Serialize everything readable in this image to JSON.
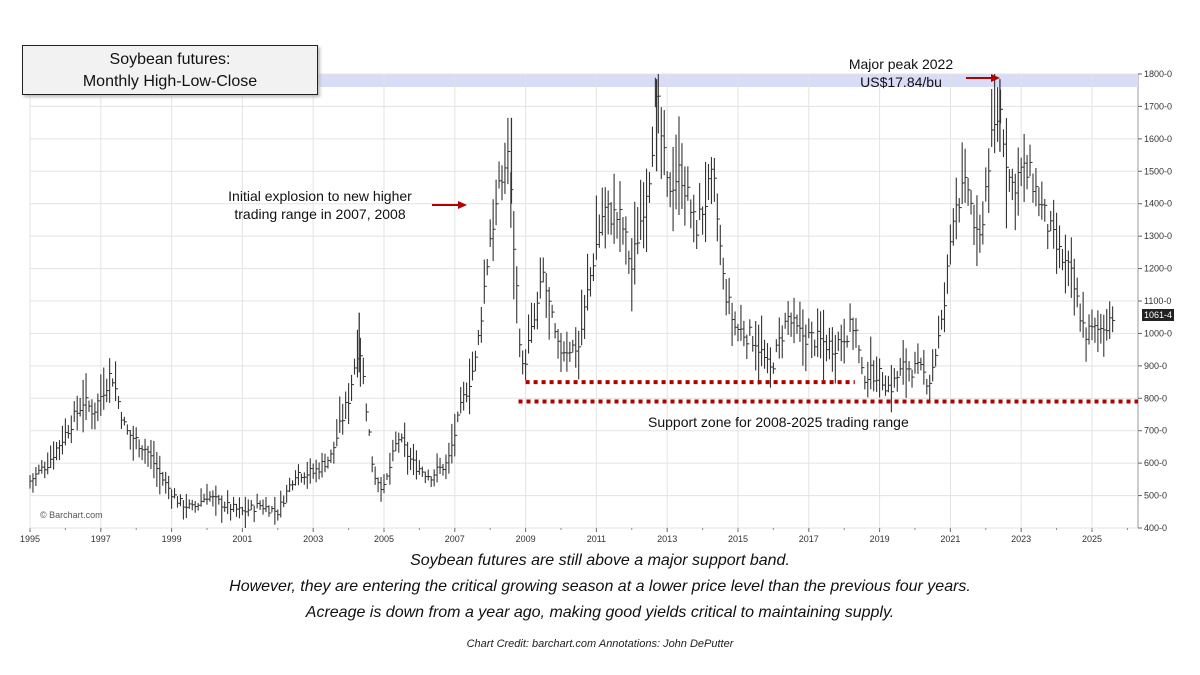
{
  "title": {
    "line1": "Soybean futures:",
    "line2": "Monthly High-Low-Close"
  },
  "annotations": {
    "initial_line1": "Initial explosion to new higher",
    "initial_line2": "trading range in 2007, 2008",
    "peak_line1": "Major peak 2022",
    "peak_line2": "US$17.84/bu",
    "support": "Support zone for 2008-2025 trading range"
  },
  "captions": {
    "line1": "Soybean futures are still above a major support band.",
    "line2": "However, they are entering the critical growing season at a lower price level than the previous four years.",
    "line3": "Acreage is down from a year ago, making good yields critical to maintaining supply."
  },
  "credit": "Chart Credit: barchart.com Annotations: John DePutter",
  "watermark": "© Barchart.com",
  "last_price_label": "1061-4",
  "colors": {
    "bars": "#333333",
    "arrow": "#b00000",
    "support_dots": "#b00000",
    "peak_band": "#d8dcf6",
    "grid": "#e3e3e3"
  },
  "chart_data": {
    "type": "bar",
    "style": "monthly high-low-close",
    "title": "Soybean futures: Monthly High-Low-Close",
    "xlim": [
      1995,
      2026.3
    ],
    "ylim": [
      400,
      1800
    ],
    "x_ticks": [
      1995,
      1997,
      1999,
      2001,
      2003,
      2005,
      2007,
      2009,
      2011,
      2013,
      2015,
      2017,
      2019,
      2021,
      2023,
      2025
    ],
    "y_ticks": [
      400,
      500,
      600,
      700,
      800,
      900,
      1000,
      1100,
      1200,
      1300,
      1400,
      1500,
      1600,
      1700,
      1800
    ],
    "y_tick_labels": [
      "400-0",
      "500-0",
      "600-0",
      "700-0",
      "800-0",
      "900-0",
      "1000-0",
      "1100-0",
      "1200-0",
      "1300-0",
      "1400-0",
      "1500-0",
      "1600-0",
      "1700-0",
      "1800-0"
    ],
    "grid": true,
    "y_axis_position": "right",
    "anchors": [
      [
        1995.0,
        545
      ],
      [
        1995.5,
        600
      ],
      [
        1996.0,
        690
      ],
      [
        1996.5,
        790
      ],
      [
        1996.8,
        760
      ],
      [
        1997.3,
        880
      ],
      [
        1997.7,
        700
      ],
      [
        1998.3,
        640
      ],
      [
        1998.8,
        540
      ],
      [
        1999.2,
        480
      ],
      [
        1999.6,
        460
      ],
      [
        2000.0,
        500
      ],
      [
        2000.5,
        470
      ],
      [
        2001.0,
        450
      ],
      [
        2001.5,
        470
      ],
      [
        2002.0,
        450
      ],
      [
        2002.5,
        570
      ],
      [
        2003.0,
        570
      ],
      [
        2003.5,
        620
      ],
      [
        2004.0,
        800
      ],
      [
        2004.3,
        980
      ],
      [
        2004.7,
        570
      ],
      [
        2005.0,
        520
      ],
      [
        2005.4,
        680
      ],
      [
        2005.8,
        600
      ],
      [
        2006.3,
        560
      ],
      [
        2006.8,
        600
      ],
      [
        2007.2,
        780
      ],
      [
        2007.6,
        920
      ],
      [
        2008.0,
        1300
      ],
      [
        2008.5,
        1560
      ],
      [
        2008.9,
        880
      ],
      [
        2009.3,
        1060
      ],
      [
        2009.5,
        1180
      ],
      [
        2009.9,
        950
      ],
      [
        2010.5,
        960
      ],
      [
        2010.9,
        1220
      ],
      [
        2011.2,
        1380
      ],
      [
        2011.7,
        1350
      ],
      [
        2012.0,
        1200
      ],
      [
        2012.5,
        1500
      ],
      [
        2012.7,
        1730
      ],
      [
        2013.0,
        1450
      ],
      [
        2013.4,
        1500
      ],
      [
        2013.8,
        1320
      ],
      [
        2014.3,
        1480
      ],
      [
        2014.6,
        1150
      ],
      [
        2014.9,
        1020
      ],
      [
        2015.5,
        980
      ],
      [
        2015.9,
        880
      ],
      [
        2016.4,
        1050
      ],
      [
        2016.7,
        1000
      ],
      [
        2017.2,
        980
      ],
      [
        2017.7,
        960
      ],
      [
        2018.3,
        1030
      ],
      [
        2018.5,
        870
      ],
      [
        2018.9,
        880
      ],
      [
        2019.3,
        830
      ],
      [
        2019.7,
        900
      ],
      [
        2020.2,
        880
      ],
      [
        2020.4,
        850
      ],
      [
        2020.8,
        1050
      ],
      [
        2021.1,
        1400
      ],
      [
        2021.5,
        1450
      ],
      [
        2021.8,
        1250
      ],
      [
        2022.1,
        1550
      ],
      [
        2022.4,
        1700
      ],
      [
        2022.7,
        1450
      ],
      [
        2023.0,
        1500
      ],
      [
        2023.3,
        1480
      ],
      [
        2023.6,
        1380
      ],
      [
        2024.0,
        1260
      ],
      [
        2024.4,
        1180
      ],
      [
        2024.8,
        1000
      ],
      [
        2025.2,
        1010
      ],
      [
        2025.6,
        1061
      ]
    ],
    "annotated_peak": {
      "x": 2022.4,
      "y": 1784
    },
    "support_lines": [
      {
        "x_start": 2009.0,
        "x_end": 2018.3,
        "y": 850
      },
      {
        "x_start": 2008.8,
        "x_end": 2026.3,
        "y": 790
      }
    ],
    "peak_band": {
      "y_low": 1760,
      "y_high": 1800
    },
    "last_close": 1061.5
  }
}
